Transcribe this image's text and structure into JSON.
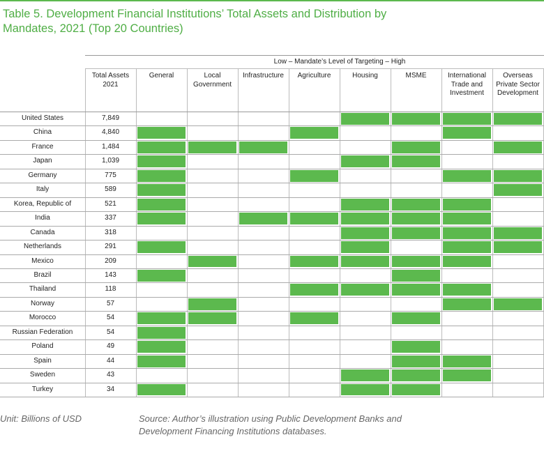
{
  "header": {
    "title": "Table 5. Development Financial Institutions’ Total Assets and Distribution by Mandates, 2021 (Top 20 Countries)"
  },
  "table": {
    "band_label": "Low – Mandate’s Level of Targeting – High",
    "columns": [
      "Total Assets 2021",
      "General",
      "Local Government",
      "Infrastructure",
      "Agriculture",
      "Housing",
      "MSME",
      "International Trade and Investment",
      "Overseas Private Sector Development"
    ],
    "highlight_color": "#5cb94e",
    "rows": [
      {
        "country": "United States",
        "total_assets": "7,849",
        "mandates": [
          false,
          false,
          false,
          false,
          true,
          true,
          true,
          true
        ]
      },
      {
        "country": "China",
        "total_assets": "4,840",
        "mandates": [
          true,
          false,
          false,
          true,
          false,
          false,
          true,
          false
        ]
      },
      {
        "country": "France",
        "total_assets": "1,484",
        "mandates": [
          true,
          true,
          true,
          false,
          false,
          true,
          false,
          true
        ]
      },
      {
        "country": "Japan",
        "total_assets": "1,039",
        "mandates": [
          true,
          false,
          false,
          false,
          true,
          true,
          false,
          false
        ]
      },
      {
        "country": "Germany",
        "total_assets": "775",
        "mandates": [
          true,
          false,
          false,
          true,
          false,
          false,
          true,
          true
        ]
      },
      {
        "country": "Italy",
        "total_assets": "589",
        "mandates": [
          true,
          false,
          false,
          false,
          false,
          false,
          false,
          true
        ]
      },
      {
        "country": "Korea, Republic of",
        "total_assets": "521",
        "mandates": [
          true,
          false,
          false,
          false,
          true,
          true,
          true,
          false
        ]
      },
      {
        "country": "India",
        "total_assets": "337",
        "mandates": [
          true,
          false,
          true,
          true,
          true,
          true,
          true,
          false
        ]
      },
      {
        "country": "Canada",
        "total_assets": "318",
        "mandates": [
          false,
          false,
          false,
          false,
          true,
          true,
          true,
          true
        ]
      },
      {
        "country": "Netherlands",
        "total_assets": "291",
        "mandates": [
          true,
          false,
          false,
          false,
          true,
          false,
          true,
          true
        ]
      },
      {
        "country": "Mexico",
        "total_assets": "209",
        "mandates": [
          false,
          true,
          false,
          true,
          true,
          true,
          true,
          false
        ]
      },
      {
        "country": "Brazil",
        "total_assets": "143",
        "mandates": [
          true,
          false,
          false,
          false,
          false,
          true,
          false,
          false
        ]
      },
      {
        "country": "Thailand",
        "total_assets": "118",
        "mandates": [
          false,
          false,
          false,
          true,
          true,
          true,
          true,
          false
        ]
      },
      {
        "country": "Norway",
        "total_assets": "57",
        "mandates": [
          false,
          true,
          false,
          false,
          false,
          false,
          true,
          true
        ]
      },
      {
        "country": "Morocco",
        "total_assets": "54",
        "mandates": [
          true,
          true,
          false,
          true,
          false,
          true,
          false,
          false
        ]
      },
      {
        "country": "Russian Federation",
        "total_assets": "54",
        "mandates": [
          true,
          false,
          false,
          false,
          false,
          false,
          false,
          false
        ]
      },
      {
        "country": "Poland",
        "total_assets": "49",
        "mandates": [
          true,
          false,
          false,
          false,
          false,
          true,
          false,
          false
        ]
      },
      {
        "country": "Spain",
        "total_assets": "44",
        "mandates": [
          true,
          false,
          false,
          false,
          false,
          true,
          true,
          false
        ]
      },
      {
        "country": "Sweden",
        "total_assets": "43",
        "mandates": [
          false,
          false,
          false,
          false,
          true,
          true,
          true,
          false
        ]
      },
      {
        "country": "Turkey",
        "total_assets": "34",
        "mandates": [
          true,
          false,
          false,
          false,
          true,
          true,
          false,
          false
        ]
      }
    ]
  },
  "footer": {
    "unit": "Unit: Billions of USD",
    "source": "Source: Author’s illustration using Public Development Banks and Development Financing Institutions databases."
  }
}
